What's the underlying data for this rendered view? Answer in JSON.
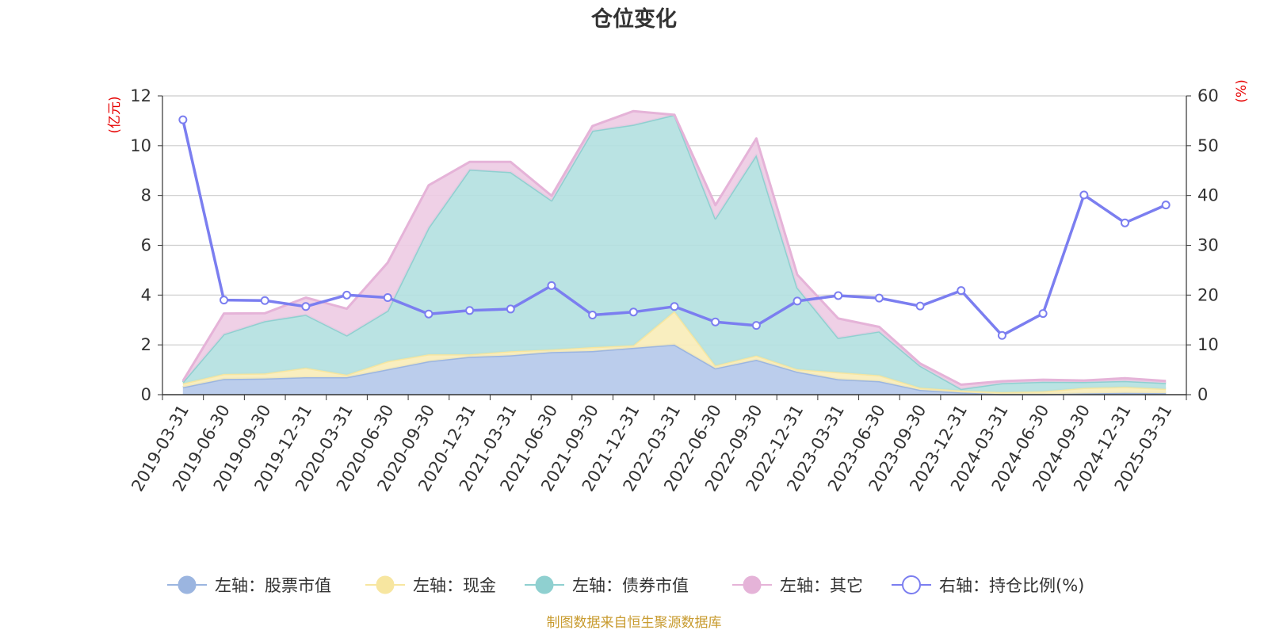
{
  "chart_data": {
    "type": "area",
    "title": "仓位变化",
    "left_unit": "(亿元)",
    "right_unit": "(%)",
    "source": "制图数据来自恒生聚源数据库",
    "y_left": {
      "min": 0,
      "max": 12,
      "ticks": [
        "0",
        "2",
        "4",
        "6",
        "8",
        "10",
        "12"
      ]
    },
    "y_right": {
      "min": 0,
      "max": 60,
      "ticks": [
        "0",
        "10",
        "20",
        "30",
        "40",
        "50",
        "60"
      ]
    },
    "grid": true,
    "legend_position": "bottom",
    "categories": [
      "2019-03-31",
      "2019-06-30",
      "2019-09-30",
      "2019-12-31",
      "2020-03-31",
      "2020-06-30",
      "2020-09-30",
      "2020-12-31",
      "2021-03-31",
      "2021-06-30",
      "2021-09-30",
      "2021-12-31",
      "2022-03-31",
      "2022-06-30",
      "2022-09-30",
      "2022-12-31",
      "2023-03-31",
      "2023-06-30",
      "2023-09-30",
      "2023-12-31",
      "2024-03-31",
      "2024-06-30",
      "2024-09-30",
      "2024-12-31",
      "2025-03-31"
    ],
    "stacked_series": [
      {
        "name": "左轴：股票市值",
        "color": "#9bb5e0",
        "fill": "#b4c8ea",
        "values": [
          0.3,
          0.63,
          0.65,
          0.7,
          0.7,
          1.02,
          1.34,
          1.52,
          1.58,
          1.71,
          1.75,
          1.88,
          2.01,
          1.06,
          1.4,
          0.92,
          0.62,
          0.54,
          0.19,
          0.09,
          0.02,
          0.02,
          0.05,
          0.07,
          0.06
        ]
      },
      {
        "name": "左轴：现金",
        "color": "#f7e6a0",
        "fill": "#f8ecb8",
        "values": [
          0.15,
          0.2,
          0.2,
          0.38,
          0.1,
          0.32,
          0.28,
          0.1,
          0.16,
          0.1,
          0.16,
          0.1,
          1.34,
          0.11,
          0.17,
          0.1,
          0.28,
          0.24,
          0.09,
          0.08,
          0.08,
          0.11,
          0.22,
          0.24,
          0.17
        ]
      },
      {
        "name": "左轴：债券市值",
        "color": "#8fd0d0",
        "fill": "#b3e0e0",
        "values": [
          0.05,
          1.6,
          2.1,
          2.13,
          1.58,
          2.03,
          5.09,
          7.42,
          7.2,
          5.99,
          8.69,
          8.86,
          7.89,
          5.91,
          8.06,
          3.28,
          1.38,
          1.76,
          0.88,
          0.06,
          0.36,
          0.39,
          0.24,
          0.24,
          0.24
        ]
      },
      {
        "name": "左轴：其它",
        "color": "#e5b3d8",
        "fill": "#edcbe3",
        "values": [
          0.05,
          0.83,
          0.32,
          0.69,
          1.07,
          1.93,
          1.7,
          0.31,
          0.41,
          0.19,
          0.19,
          0.55,
          0.0,
          0.53,
          0.66,
          0.52,
          0.78,
          0.18,
          0.09,
          0.17,
          0.08,
          0.08,
          0.06,
          0.11,
          0.08
        ]
      }
    ],
    "line_series": {
      "name": "右轴：持仓比例(%)",
      "color": "#7b7ef0",
      "axis": "right",
      "values": [
        55.2,
        19.0,
        18.9,
        17.7,
        20.0,
        19.5,
        16.2,
        16.9,
        17.2,
        21.9,
        16.0,
        16.6,
        17.7,
        14.6,
        13.9,
        18.8,
        19.9,
        19.4,
        17.8,
        20.9,
        11.9,
        16.3,
        40.1,
        34.5,
        38.1
      ]
    }
  }
}
